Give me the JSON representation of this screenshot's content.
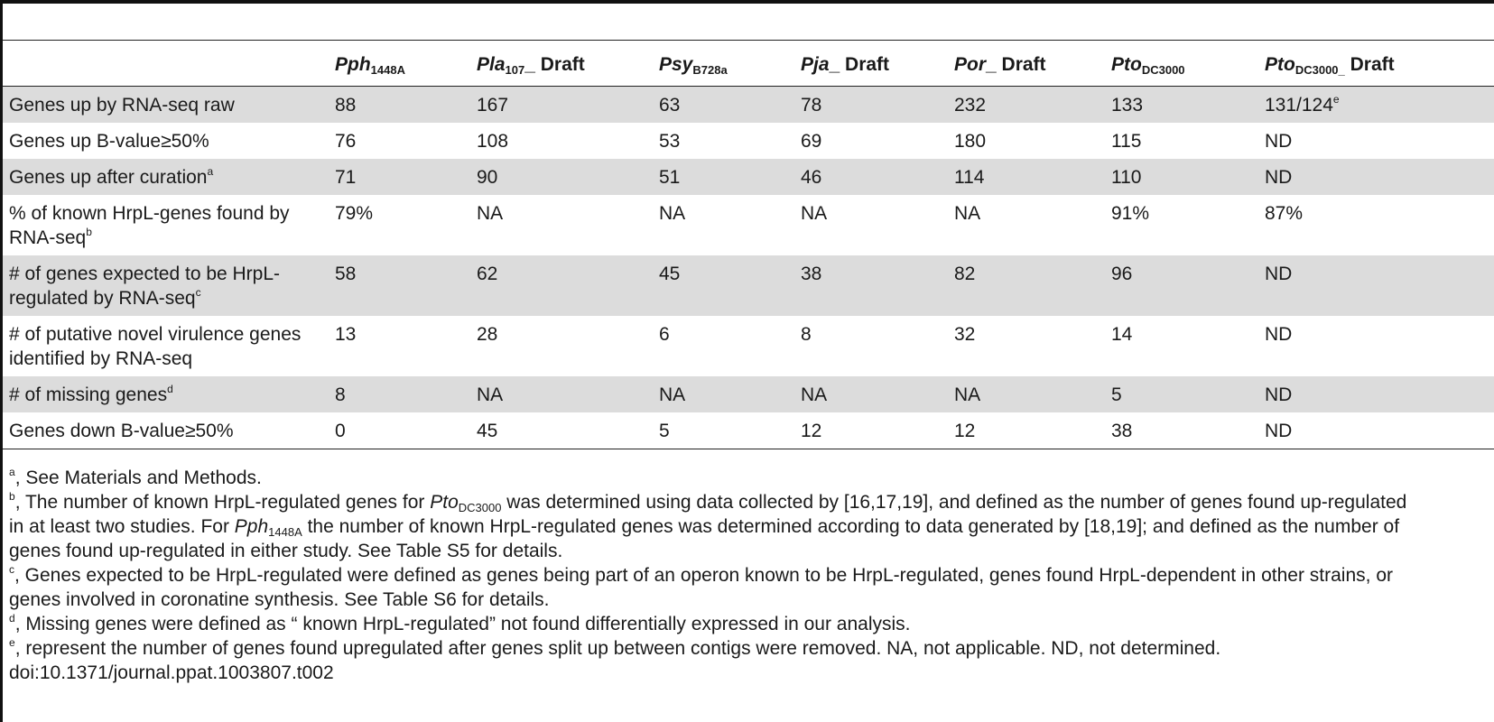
{
  "table": {
    "headers": [
      {
        "base": "",
        "sub": "",
        "suffix": ""
      },
      {
        "base": "Pph",
        "sub": "1448A",
        "suffix": ""
      },
      {
        "base": "Pla",
        "sub": "107",
        "suffix": "_ Draft"
      },
      {
        "base": "Psy",
        "sub": "B728a",
        "suffix": ""
      },
      {
        "base": "Pja",
        "sub": "",
        "suffix": "_ Draft"
      },
      {
        "base": "Por",
        "sub": "",
        "suffix": "_ Draft"
      },
      {
        "base": "Pto",
        "sub": "DC3000",
        "suffix": ""
      },
      {
        "base": "Pto",
        "sub": "DC3000_",
        "suffix": " Draft"
      }
    ],
    "rows": [
      {
        "label": "Genes up by RNA-seq raw",
        "label_sup": "",
        "values": [
          "88",
          "167",
          "63",
          "78",
          "232",
          "133",
          "131/124"
        ],
        "value_sups": [
          "",
          "",
          "",
          "",
          "",
          "",
          "e"
        ]
      },
      {
        "label": "Genes up B-value≥50%",
        "label_sup": "",
        "values": [
          "76",
          "108",
          "53",
          "69",
          "180",
          "115",
          "ND"
        ],
        "value_sups": [
          "",
          "",
          "",
          "",
          "",
          "",
          ""
        ]
      },
      {
        "label": "Genes up after curation",
        "label_sup": "a",
        "values": [
          "71",
          "90",
          "51",
          "46",
          "114",
          "110",
          "ND"
        ],
        "value_sups": [
          "",
          "",
          "",
          "",
          "",
          "",
          ""
        ]
      },
      {
        "label": "% of known HrpL-genes found by RNA-seq",
        "label_sup": "b",
        "values": [
          "79%",
          "NA",
          "NA",
          "NA",
          "NA",
          "91%",
          "87%"
        ],
        "value_sups": [
          "",
          "",
          "",
          "",
          "",
          "",
          ""
        ]
      },
      {
        "label": "# of genes expected to be HrpL-regulated by RNA-seq",
        "label_sup": "c",
        "values": [
          "58",
          "62",
          "45",
          "38",
          "82",
          "96",
          "ND"
        ],
        "value_sups": [
          "",
          "",
          "",
          "",
          "",
          "",
          ""
        ]
      },
      {
        "label": "# of putative novel virulence genes identified by RNA-seq",
        "label_sup": "",
        "values": [
          "13",
          "28",
          "6",
          "8",
          "32",
          "14",
          "ND"
        ],
        "value_sups": [
          "",
          "",
          "",
          "",
          "",
          "",
          ""
        ]
      },
      {
        "label": "# of missing genes",
        "label_sup": "d",
        "values": [
          "8",
          "NA",
          "NA",
          "NA",
          "NA",
          "5",
          "ND"
        ],
        "value_sups": [
          "",
          "",
          "",
          "",
          "",
          "",
          ""
        ]
      },
      {
        "label": "Genes down B-value≥50%",
        "label_sup": "",
        "values": [
          "0",
          "45",
          "5",
          "12",
          "12",
          "38",
          "ND"
        ],
        "value_sups": [
          "",
          "",
          "",
          "",
          "",
          "",
          ""
        ]
      }
    ]
  },
  "footnotes": {
    "a": {
      "marker": "a",
      "text": ", See Materials and Methods."
    },
    "b": {
      "marker": "b",
      "t1": ", The number of known HrpL-regulated genes for ",
      "i1": "Pto",
      "s1": "DC3000",
      "t2": " was determined using data collected by [16,17,19], and defined as the number of genes found up-regulated",
      "line2": "in at least two studies. For ",
      "i2": "Pph",
      "s2": "1448A",
      "t3": " the number of known HrpL-regulated genes was determined according to data generated by [18,19]; and defined as the number of",
      "line3": "genes found up-regulated in either study. See Table S5 for details."
    },
    "c": {
      "marker": "c",
      "line1": ", Genes expected to be HrpL-regulated were defined as genes being part of an operon known to be HrpL-regulated, genes found HrpL-dependent in other strains, or",
      "line2": "genes involved in coronatine synthesis. See Table S6 for details."
    },
    "d": {
      "marker": "d",
      "text": ", Missing genes were defined as “ known HrpL-regulated” not found differentially expressed in our analysis."
    },
    "e": {
      "marker": "e",
      "text": ", represent the number of genes found upregulated after genes split up between contigs were removed. NA, not applicable. ND, not determined."
    }
  },
  "doi": "doi:10.1371/journal.ppat.1003807.t002"
}
